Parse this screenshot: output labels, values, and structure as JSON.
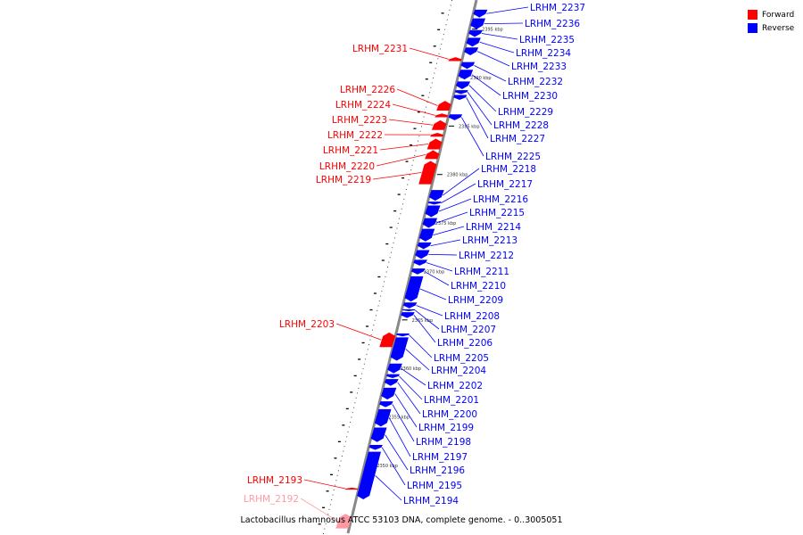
{
  "caption": "Lactobacillus rhamnosus ATCC 53103 DNA, complete genome. - 0..3005051",
  "legend": [
    {
      "label": "Forward",
      "color": "#ff0000"
    },
    {
      "label": "Reverse",
      "color": "#0000ff"
    }
  ],
  "colors": {
    "forward": "#ff0000",
    "reverse": "#0000ff",
    "forward_light": "#ff9aa2",
    "axis": "#888888"
  },
  "axis": {
    "start_kbp": 2348,
    "end_kbp": 2397,
    "tick_labels": [
      "2395 kbp",
      "2390 kbp",
      "2385 kbp",
      "2380 kbp",
      "2375 kbp",
      "2370 kbp",
      "2365 kbp",
      "2360 kbp",
      "2355 kbp",
      "2350 kbp"
    ]
  },
  "genes": [
    {
      "name": "LRHM_2237",
      "strand": "reverse",
      "start": 2396.2,
      "end": 2397.0
    },
    {
      "name": "LRHM_2236",
      "strand": "reverse",
      "start": 2395.0,
      "end": 2396.1
    },
    {
      "name": "LRHM_2235",
      "strand": "reverse",
      "start": 2394.2,
      "end": 2394.9
    },
    {
      "name": "LRHM_2234",
      "strand": "reverse",
      "start": 2393.2,
      "end": 2394.1
    },
    {
      "name": "LRHM_2233",
      "strand": "reverse",
      "start": 2392.3,
      "end": 2393.1
    },
    {
      "name": "LRHM_2232",
      "strand": "reverse",
      "start": 2390.9,
      "end": 2391.6
    },
    {
      "name": "LRHM_2230",
      "strand": "reverse",
      "start": 2389.8,
      "end": 2390.8
    },
    {
      "name": "LRHM_2229",
      "strand": "reverse",
      "start": 2388.8,
      "end": 2389.6
    },
    {
      "name": "LRHM_2228",
      "strand": "reverse",
      "start": 2388.3,
      "end": 2388.7
    },
    {
      "name": "LRHM_2227",
      "strand": "reverse",
      "start": 2387.7,
      "end": 2388.2
    },
    {
      "name": "LRHM_2225",
      "strand": "reverse",
      "start": 2385.6,
      "end": 2386.2
    },
    {
      "name": "LRHM_2218",
      "strand": "reverse",
      "start": 2377.3,
      "end": 2378.4
    },
    {
      "name": "LRHM_2217",
      "strand": "reverse",
      "start": 2376.9,
      "end": 2377.2
    },
    {
      "name": "LRHM_2216",
      "strand": "reverse",
      "start": 2375.6,
      "end": 2376.8
    },
    {
      "name": "LRHM_2215",
      "strand": "reverse",
      "start": 2374.5,
      "end": 2375.5
    },
    {
      "name": "LRHM_2214",
      "strand": "reverse",
      "start": 2373.1,
      "end": 2374.4
    },
    {
      "name": "LRHM_2213",
      "strand": "reverse",
      "start": 2372.3,
      "end": 2373.0
    },
    {
      "name": "LRHM_2212",
      "strand": "reverse",
      "start": 2371.3,
      "end": 2372.2
    },
    {
      "name": "LRHM_2211",
      "strand": "reverse",
      "start": 2370.6,
      "end": 2371.2
    },
    {
      "name": "LRHM_2210",
      "strand": "reverse",
      "start": 2369.7,
      "end": 2370.3
    },
    {
      "name": "LRHM_2209",
      "strand": "reverse",
      "start": 2366.9,
      "end": 2369.5
    },
    {
      "name": "LRHM_2208",
      "strand": "reverse",
      "start": 2366.2,
      "end": 2366.8
    },
    {
      "name": "LRHM_2207",
      "strand": "reverse",
      "start": 2365.9,
      "end": 2366.1
    },
    {
      "name": "LRHM_2206",
      "strand": "reverse",
      "start": 2365.2,
      "end": 2365.8
    },
    {
      "name": "LRHM_2205",
      "strand": "reverse",
      "start": 2363.3,
      "end": 2363.6
    },
    {
      "name": "LRHM_2204",
      "strand": "reverse",
      "start": 2360.8,
      "end": 2363.2
    },
    {
      "name": "LRHM_2202",
      "strand": "reverse",
      "start": 2359.5,
      "end": 2360.5
    },
    {
      "name": "LRHM_2201",
      "strand": "reverse",
      "start": 2359.0,
      "end": 2359.4
    },
    {
      "name": "LRHM_2200",
      "strand": "reverse",
      "start": 2358.2,
      "end": 2358.9
    },
    {
      "name": "LRHM_2199",
      "strand": "reverse",
      "start": 2356.8,
      "end": 2358.0
    },
    {
      "name": "LRHM_2198",
      "strand": "reverse",
      "start": 2356.0,
      "end": 2356.6
    },
    {
      "name": "LRHM_2197",
      "strand": "reverse",
      "start": 2354.0,
      "end": 2355.8
    },
    {
      "name": "LRHM_2196",
      "strand": "reverse",
      "start": 2352.4,
      "end": 2353.9
    },
    {
      "name": "LRHM_2195",
      "strand": "reverse",
      "start": 2351.6,
      "end": 2352.1
    },
    {
      "name": "LRHM_2194",
      "strand": "reverse",
      "start": 2346.5,
      "end": 2351.4
    },
    {
      "name": "LRHM_2193",
      "strand": "forward",
      "start": 2347.5,
      "end": 2347.7
    },
    {
      "name": "LRHM_2231",
      "strand": "forward",
      "start": 2391.7,
      "end": 2392.1
    },
    {
      "name": "LRHM_2226",
      "strand": "forward",
      "start": 2386.6,
      "end": 2387.6
    },
    {
      "name": "LRHM_2224",
      "strand": "forward",
      "start": 2385.9,
      "end": 2386.3
    },
    {
      "name": "LRHM_2223",
      "strand": "forward",
      "start": 2384.6,
      "end": 2385.6
    },
    {
      "name": "LRHM_2222",
      "strand": "forward",
      "start": 2383.9,
      "end": 2384.3
    },
    {
      "name": "LRHM_2221",
      "strand": "forward",
      "start": 2382.6,
      "end": 2383.7
    },
    {
      "name": "LRHM_2220",
      "strand": "forward",
      "start": 2381.6,
      "end": 2382.5
    },
    {
      "name": "LRHM_2219",
      "strand": "forward",
      "start": 2379.0,
      "end": 2381.4
    },
    {
      "name": "LRHM_2203",
      "strand": "forward",
      "start": 2362.2,
      "end": 2363.7
    },
    {
      "name": "LRHM_2192",
      "strand": "forward",
      "start": 2343.5,
      "end": 2345.0,
      "faded": true
    }
  ]
}
